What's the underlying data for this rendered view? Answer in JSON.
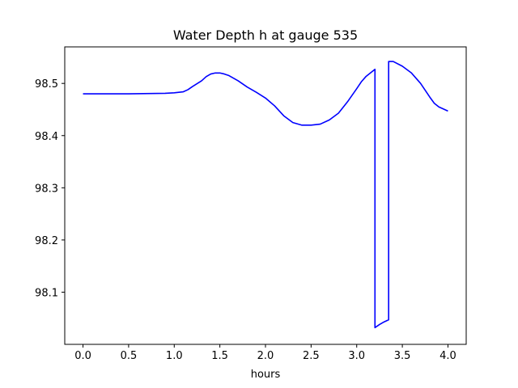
{
  "chart_data": {
    "type": "line",
    "title": "Water Depth h at gauge 535",
    "xlabel": "hours",
    "ylabel": "",
    "xlim": [
      -0.2,
      4.2
    ],
    "ylim": [
      98.0,
      98.57
    ],
    "xticks": [
      0.0,
      0.5,
      1.0,
      1.5,
      2.0,
      2.5,
      3.0,
      3.5,
      4.0
    ],
    "xtick_labels": [
      "0.0",
      "0.5",
      "1.0",
      "1.5",
      "2.0",
      "2.5",
      "3.0",
      "3.5",
      "4.0"
    ],
    "yticks": [
      98.1,
      98.2,
      98.3,
      98.4,
      98.5
    ],
    "ytick_labels": [
      "98.1",
      "98.2",
      "98.3",
      "98.4",
      "98.5"
    ],
    "grid": false,
    "series": [
      {
        "color": "#0000ff",
        "x": [
          0.0,
          0.5,
          0.9,
          1.0,
          1.05,
          1.1,
          1.15,
          1.2,
          1.3,
          1.35,
          1.4,
          1.45,
          1.5,
          1.55,
          1.6,
          1.7,
          1.8,
          1.9,
          2.0,
          2.1,
          2.2,
          2.3,
          2.4,
          2.5,
          2.6,
          2.7,
          2.8,
          2.9,
          3.0,
          3.05,
          3.1,
          3.15,
          3.2,
          3.2,
          3.25,
          3.3,
          3.35,
          3.35,
          3.4,
          3.5,
          3.6,
          3.7,
          3.8,
          3.85,
          3.9,
          4.0
        ],
        "y": [
          98.48,
          98.48,
          98.481,
          98.482,
          98.483,
          98.484,
          98.488,
          98.494,
          98.505,
          98.513,
          98.518,
          98.52,
          98.52,
          98.518,
          98.515,
          98.505,
          98.493,
          98.483,
          98.472,
          98.457,
          98.438,
          98.425,
          98.42,
          98.42,
          98.422,
          98.43,
          98.443,
          98.465,
          98.49,
          98.503,
          98.513,
          98.52,
          98.527,
          98.032,
          98.038,
          98.043,
          98.047,
          98.542,
          98.542,
          98.533,
          98.52,
          98.5,
          98.474,
          98.462,
          98.455,
          98.447
        ]
      }
    ]
  }
}
